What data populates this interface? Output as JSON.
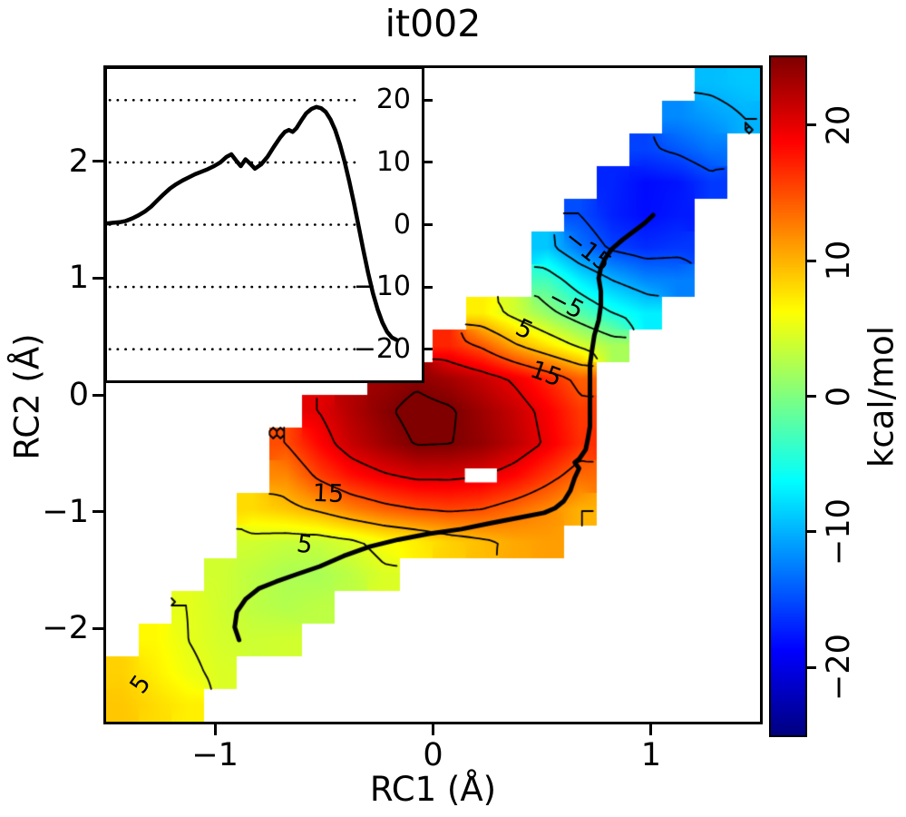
{
  "title": "it002",
  "axes": {
    "xlabel": "RC1 (Å)",
    "ylabel": "RC2 (Å)",
    "xticks": [
      -1,
      0,
      1
    ],
    "yticks": [
      -2,
      -1,
      0,
      1,
      2
    ],
    "xlim": [
      -1.5,
      1.5
    ],
    "ylim": [
      -2.8,
      2.8
    ]
  },
  "colorbar": {
    "label": "kcal/mol",
    "ticks": [
      20,
      10,
      0,
      -10,
      -20
    ],
    "vmin": -25,
    "vmax": 25,
    "colormap": "jet"
  },
  "chart_data": {
    "type": "heatmap",
    "subtype": "free-energy-surface with contours, minimum-energy path and inset profile",
    "title": "it002",
    "xlabel": "RC1 (Å)",
    "ylabel": "RC2 (Å)",
    "xlim": [
      -1.5,
      1.5
    ],
    "ylim": [
      -2.8,
      2.8
    ],
    "colormap": "jet",
    "vmin": -25,
    "vmax": 25,
    "units": "kcal/mol",
    "grid": {
      "x0": -1.425,
      "dx": 0.15,
      "y0": -2.66,
      "dy": 0.28,
      "ncols": 20,
      "nrows": 20,
      "row_order": "bottom-to-top",
      "values": [
        [
          9,
          8,
          7,
          null,
          null,
          null,
          null,
          null,
          null,
          null,
          null,
          null,
          null,
          null,
          null,
          null,
          null,
          null,
          null,
          null
        ],
        [
          8.5,
          7,
          5.5,
          4.5,
          null,
          null,
          null,
          null,
          null,
          null,
          null,
          null,
          null,
          null,
          null,
          null,
          null,
          null,
          null,
          null
        ],
        [
          null,
          6.5,
          5,
          4.2,
          3.8,
          4,
          null,
          null,
          null,
          null,
          null,
          null,
          null,
          null,
          null,
          null,
          null,
          null,
          null,
          null
        ],
        [
          null,
          null,
          5,
          4,
          3,
          2.5,
          3,
          null,
          null,
          null,
          null,
          null,
          null,
          null,
          null,
          null,
          null,
          null,
          null,
          null
        ],
        [
          null,
          null,
          null,
          4,
          3,
          2.2,
          2,
          3,
          4.5,
          null,
          null,
          null,
          null,
          null,
          null,
          null,
          null,
          null,
          null,
          null
        ],
        [
          null,
          null,
          null,
          null,
          4,
          3.5,
          3.5,
          4.5,
          6,
          7,
          8.5,
          9.5,
          10.5,
          11,
          null,
          null,
          null,
          null,
          null,
          null
        ],
        [
          null,
          null,
          null,
          null,
          8,
          9,
          10.5,
          12.5,
          14,
          15,
          15.5,
          15,
          13.5,
          12,
          10,
          null,
          null,
          null,
          null,
          null
        ],
        [
          null,
          null,
          null,
          null,
          null,
          12,
          15.5,
          18,
          19.5,
          20.5,
          20.5,
          20,
          18.5,
          16,
          13.5,
          null,
          null,
          null,
          null,
          null
        ],
        [
          null,
          null,
          null,
          null,
          null,
          15,
          18.5,
          21.5,
          23.5,
          25.2,
          25.1,
          24,
          22,
          19.5,
          16.5,
          null,
          null,
          null,
          null,
          null
        ],
        [
          null,
          null,
          null,
          null,
          null,
          null,
          20,
          22.5,
          24.5,
          26,
          25.4,
          23.5,
          21.5,
          19,
          16,
          null,
          null,
          null,
          null,
          null
        ],
        [
          null,
          null,
          null,
          null,
          null,
          null,
          null,
          null,
          23.5,
          24.4,
          23.2,
          21.5,
          19.5,
          17,
          14,
          null,
          null,
          null,
          null,
          null
        ],
        [
          null,
          null,
          null,
          null,
          null,
          null,
          null,
          null,
          null,
          null,
          17,
          14.5,
          10.5,
          7.5,
          4.5,
          2,
          null,
          null,
          null,
          null
        ],
        [
          null,
          null,
          null,
          null,
          null,
          null,
          null,
          null,
          null,
          null,
          null,
          7,
          4,
          1,
          -2,
          -5,
          -7,
          null,
          null,
          null
        ],
        [
          null,
          null,
          null,
          null,
          null,
          null,
          null,
          null,
          null,
          null,
          null,
          null,
          null,
          -3,
          -7,
          -10,
          -12,
          -12.5,
          null,
          null
        ],
        [
          null,
          null,
          null,
          null,
          null,
          null,
          null,
          null,
          null,
          null,
          null,
          null,
          null,
          -9,
          -13,
          -15.5,
          -16.5,
          -16,
          null,
          null
        ],
        [
          null,
          null,
          null,
          null,
          null,
          null,
          null,
          null,
          null,
          null,
          null,
          null,
          null,
          null,
          -15,
          -17.2,
          -18.2,
          -17.5,
          null,
          null
        ],
        [
          null,
          null,
          null,
          null,
          null,
          null,
          null,
          null,
          null,
          null,
          null,
          null,
          null,
          null,
          null,
          -17,
          -18.3,
          -17.8,
          -16,
          null
        ],
        [
          null,
          null,
          null,
          null,
          null,
          null,
          null,
          null,
          null,
          null,
          null,
          null,
          null,
          null,
          null,
          null,
          -15.5,
          -14.5,
          -13,
          null
        ],
        [
          null,
          null,
          null,
          null,
          null,
          null,
          null,
          null,
          null,
          null,
          null,
          null,
          null,
          null,
          null,
          null,
          null,
          -12,
          -11,
          -10
        ],
        [
          null,
          null,
          null,
          null,
          null,
          null,
          null,
          null,
          null,
          null,
          null,
          null,
          null,
          null,
          null,
          null,
          null,
          null,
          -9.5,
          -9
        ]
      ]
    },
    "masked_cell": {
      "x": [
        0.146,
        0.293
      ],
      "y": [
        -0.75,
        -0.63
      ]
    },
    "contour_color": "#000000",
    "contour_levels": [
      -15,
      -10,
      -5,
      0,
      5,
      10,
      15,
      20,
      25
    ],
    "contour_labels": [
      {
        "text": "−15",
        "level": -15,
        "x": 0.71,
        "y": 1.24,
        "rot": 38
      },
      {
        "text": "−5",
        "level": -5,
        "x": 0.61,
        "y": 0.78,
        "rot": 28
      },
      {
        "text": "5",
        "level": 5,
        "x": 0.42,
        "y": 0.56,
        "rot": 25
      },
      {
        "text": "15",
        "level": 15,
        "x": 0.52,
        "y": 0.18,
        "rot": 20
      },
      {
        "text": "15",
        "level": 15,
        "x": -0.48,
        "y": -0.85,
        "rot": 2
      },
      {
        "text": "5",
        "level": 5,
        "x": -0.59,
        "y": -1.28,
        "rot": 8
      },
      {
        "text": "5",
        "level": 5,
        "x": -1.34,
        "y": -2.48,
        "rot": -55
      }
    ],
    "path_color": "#000000",
    "mfep_path": [
      [
        -0.89,
        -2.1
      ],
      [
        -0.91,
        -1.99
      ],
      [
        -0.9,
        -1.86
      ],
      [
        -0.86,
        -1.75
      ],
      [
        -0.8,
        -1.66
      ],
      [
        -0.72,
        -1.6
      ],
      [
        -0.63,
        -1.54
      ],
      [
        -0.52,
        -1.47
      ],
      [
        -0.41,
        -1.38
      ],
      [
        -0.29,
        -1.3
      ],
      [
        -0.16,
        -1.24
      ],
      [
        -0.02,
        -1.19
      ],
      [
        0.13,
        -1.15
      ],
      [
        0.26,
        -1.1
      ],
      [
        0.4,
        -1.05
      ],
      [
        0.51,
        -1.01
      ],
      [
        0.56,
        -0.97
      ],
      [
        0.6,
        -0.91
      ],
      [
        0.63,
        -0.82
      ],
      [
        0.65,
        -0.71
      ],
      [
        0.67,
        -0.63
      ],
      [
        0.65,
        -0.58
      ],
      [
        0.67,
        -0.55
      ],
      [
        0.7,
        -0.47
      ],
      [
        0.71,
        -0.38
      ],
      [
        0.72,
        -0.27
      ],
      [
        0.72,
        -0.14
      ],
      [
        0.72,
        0.0
      ],
      [
        0.72,
        0.13
      ],
      [
        0.72,
        0.26
      ],
      [
        0.73,
        0.39
      ],
      [
        0.74,
        0.51
      ],
      [
        0.76,
        0.64
      ],
      [
        0.77,
        0.77
      ],
      [
        0.77,
        0.89
      ],
      [
        0.76,
        1.0
      ],
      [
        0.77,
        1.09
      ],
      [
        0.79,
        1.17
      ],
      [
        0.82,
        1.25
      ],
      [
        0.87,
        1.33
      ],
      [
        0.92,
        1.4
      ],
      [
        0.97,
        1.47
      ],
      [
        1.01,
        1.54
      ]
    ],
    "inset": {
      "description": "free energy profile along path",
      "ylim": [
        -25,
        25
      ],
      "yticks": [
        20,
        10,
        0,
        -10,
        -20
      ],
      "line_color": "#000000",
      "profile": [
        [
          0,
          0.2
        ],
        [
          0.02,
          0.3
        ],
        [
          0.04,
          0.4
        ],
        [
          0.06,
          0.6
        ],
        [
          0.08,
          1.0
        ],
        [
          0.1,
          1.5
        ],
        [
          0.12,
          2.1
        ],
        [
          0.14,
          2.9
        ],
        [
          0.16,
          3.9
        ],
        [
          0.18,
          4.9
        ],
        [
          0.2,
          5.8
        ],
        [
          0.22,
          6.5
        ],
        [
          0.24,
          7.1
        ],
        [
          0.26,
          7.6
        ],
        [
          0.28,
          8.1
        ],
        [
          0.3,
          8.5
        ],
        [
          0.32,
          8.9
        ],
        [
          0.34,
          9.4
        ],
        [
          0.36,
          10.0
        ],
        [
          0.38,
          10.9
        ],
        [
          0.395,
          11.3
        ],
        [
          0.41,
          10.3
        ],
        [
          0.425,
          9.4
        ],
        [
          0.44,
          10.5
        ],
        [
          0.455,
          9.8
        ],
        [
          0.47,
          9.0
        ],
        [
          0.49,
          9.7
        ],
        [
          0.51,
          10.9
        ],
        [
          0.53,
          12.5
        ],
        [
          0.55,
          14.0
        ],
        [
          0.565,
          14.9
        ],
        [
          0.578,
          15.2
        ],
        [
          0.59,
          14.9
        ],
        [
          0.602,
          15.5
        ],
        [
          0.617,
          16.7
        ],
        [
          0.633,
          17.9
        ],
        [
          0.65,
          18.6
        ],
        [
          0.665,
          18.9
        ],
        [
          0.68,
          18.7
        ],
        [
          0.695,
          18.1
        ],
        [
          0.71,
          16.9
        ],
        [
          0.725,
          15.2
        ],
        [
          0.74,
          12.9
        ],
        [
          0.755,
          10.1
        ],
        [
          0.77,
          6.9
        ],
        [
          0.785,
          3.4
        ],
        [
          0.8,
          -0.4
        ],
        [
          0.815,
          -4.2
        ],
        [
          0.83,
          -7.8
        ],
        [
          0.845,
          -11.0
        ],
        [
          0.86,
          -13.6
        ],
        [
          0.875,
          -15.7
        ],
        [
          0.89,
          -17.2
        ],
        [
          0.905,
          -18.1
        ],
        [
          0.92,
          -18.5
        ]
      ]
    }
  }
}
